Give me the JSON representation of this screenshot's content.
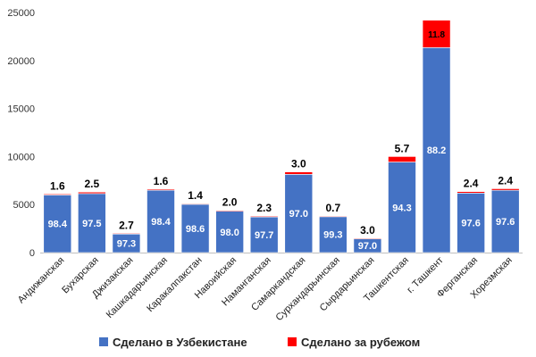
{
  "chart_data": {
    "type": "bar",
    "stacked": true,
    "categories": [
      "Андижанская",
      "Бухарская",
      "Джизакская",
      "Кашкадарьинская",
      "Каракалпакстан",
      "Навоийская",
      "Наманганская",
      "Самаркандская",
      "Сурхандарьинская",
      "Сырдарьинская",
      "Ташкентская",
      "г. Ташкент",
      "Ферганская",
      "Хорезмская"
    ],
    "totals": [
      6100,
      6300,
      2000,
      6600,
      5100,
      4400,
      3800,
      8400,
      3800,
      1500,
      10000,
      24200,
      6350,
      6650
    ],
    "series": [
      {
        "name": "Сделано в Узбекистане",
        "color": "#4472C4",
        "share_labels": [
          "98.4",
          "97.5",
          "97.3",
          "98.4",
          "98.6",
          "98.0",
          "97.7",
          "97.0",
          "99.3",
          "97.0",
          "94.3",
          "88.2",
          "97.6",
          "97.6"
        ]
      },
      {
        "name": "Сделано за рубежом",
        "color": "#FF0000",
        "share_labels": [
          "1.6",
          "2.5",
          "2.7",
          "1.6",
          "1.4",
          "2.0",
          "2.3",
          "3.0",
          "0.7",
          "3.0",
          "5.7",
          "11.8",
          "2.4",
          "2.4"
        ]
      }
    ],
    "yticks": [
      "0",
      "5000",
      "10000",
      "15000",
      "20000",
      "25000"
    ],
    "ylim": [
      0,
      25000
    ],
    "grid": false,
    "legend": "bottom"
  }
}
